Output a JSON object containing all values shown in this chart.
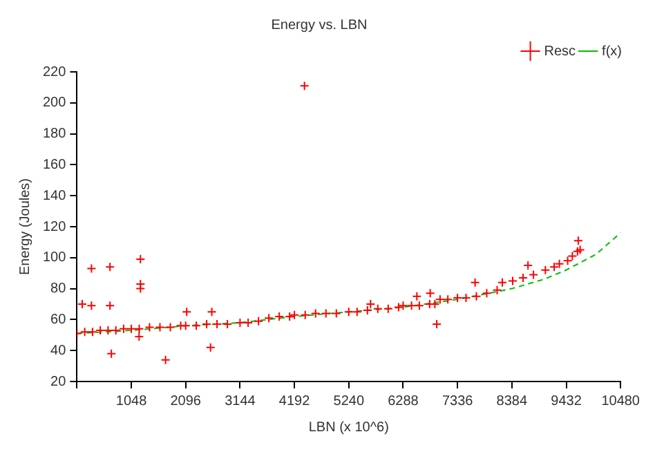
{
  "chart_data": {
    "type": "scatter",
    "title": "Energy vs. LBN",
    "xlabel": "LBN (x 10^6)",
    "ylabel": "Energy (Joules)",
    "xlim": [
      0,
      10480
    ],
    "xticks": [
      {
        "value": 0,
        "label": null
      },
      1048,
      2096,
      3144,
      4192,
      5240,
      6288,
      7336,
      8384,
      9432,
      10480
    ],
    "ylim": [
      20,
      220
    ],
    "yticks": [
      20,
      40,
      60,
      80,
      100,
      120,
      140,
      160,
      180,
      200,
      220
    ],
    "grid": false,
    "legend": "top right",
    "series": [
      {
        "name": "Resc",
        "type": "scatter",
        "marker": "cross",
        "color": "#ff0000",
        "x": [
          0,
          150,
          300,
          450,
          600,
          750,
          900,
          1048,
          1200,
          1400,
          1600,
          1800,
          2000,
          2096,
          2300,
          2500,
          2700,
          2900,
          3144,
          3300,
          3500,
          3700,
          3900,
          4100,
          4192,
          4400,
          4600,
          4800,
          5000,
          5240,
          5400,
          5600,
          5800,
          6000,
          6200,
          6288,
          6450,
          6600,
          6800,
          6900,
          7000,
          7150,
          7336,
          7500,
          7700,
          7900,
          8100,
          8200,
          8400,
          8600,
          8800,
          9030,
          9200,
          9300,
          9460,
          9550,
          9650,
          9700,
          102,
          280,
          637,
          280,
          637,
          1224,
          1224,
          1224,
          2116,
          2600,
          8695,
          7675,
          6810,
          6553,
          5660,
          9664,
          1708,
          2575,
          1198,
          6936,
          663,
          4386
        ],
        "values": [
          51,
          52,
          52,
          53,
          53,
          53,
          54,
          54,
          54,
          55,
          55,
          55,
          56,
          56,
          56,
          57,
          57,
          57,
          58,
          58,
          59,
          61,
          62,
          62,
          63,
          63,
          64,
          64,
          64,
          65,
          65,
          66,
          67,
          67,
          68,
          69,
          69,
          69,
          70,
          70,
          73,
          73,
          74,
          74,
          75,
          77,
          79,
          84,
          85,
          87,
          89,
          92,
          94,
          96,
          98,
          101,
          104,
          105,
          70,
          69,
          69,
          93,
          94,
          99,
          83,
          80,
          65,
          65,
          95,
          84,
          77,
          75,
          70,
          111,
          34,
          42,
          49,
          57,
          38,
          211
        ]
      },
      {
        "name": "f(x)",
        "type": "line",
        "line_style": "dashed",
        "marker": "none",
        "color": "#00c000",
        "x": [
          0,
          1048,
          2096,
          3144,
          4192,
          5240,
          6288,
          7336,
          8384,
          9000,
          9432,
          10000,
          10480
        ],
        "values": [
          51,
          53,
          56,
          58,
          62,
          65,
          68,
          73,
          80,
          86,
          92,
          102,
          116
        ]
      }
    ]
  }
}
